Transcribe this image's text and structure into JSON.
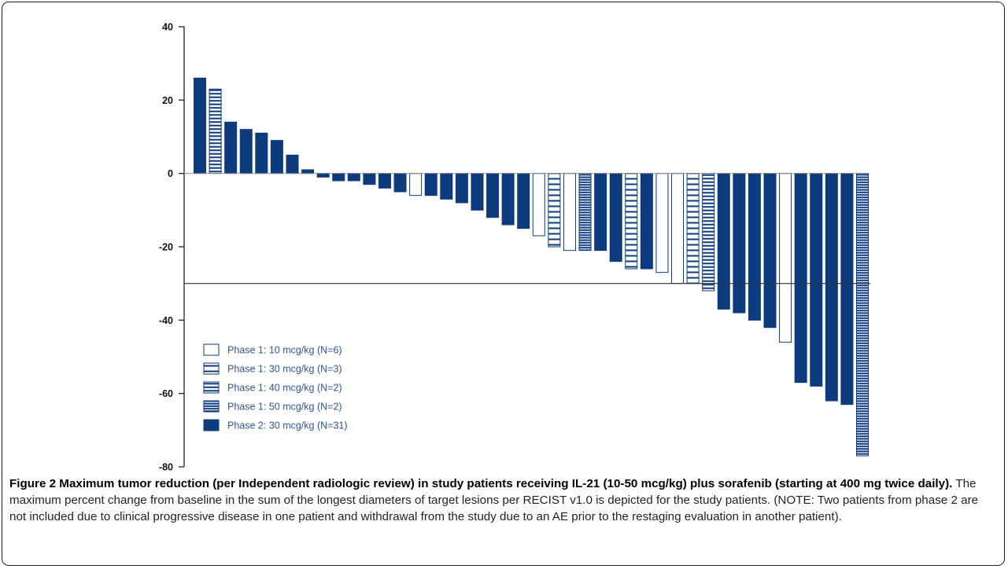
{
  "chart_data": {
    "type": "bar",
    "ylim": [
      -80,
      40
    ],
    "yticks": [
      40,
      20,
      0,
      -20,
      -40,
      -60,
      -80
    ],
    "reference_line": -30,
    "grid": false,
    "legend_position": "bottom-left",
    "legend": [
      {
        "key": "p1_10",
        "label": "Phase 1: 10 mcg/kg (N=6)"
      },
      {
        "key": "p1_30",
        "label": "Phase 1: 30 mcg/kg (N=3)"
      },
      {
        "key": "p1_40",
        "label": "Phase 1: 40 mcg/kg (N=2)"
      },
      {
        "key": "p1_50",
        "label": "Phase 1: 50 mcg/kg (N=2)"
      },
      {
        "key": "p2_30",
        "label": "Phase 2: 30 mcg/kg (N=31)"
      }
    ],
    "bars": [
      {
        "group": "p2_30",
        "value": 26
      },
      {
        "group": "p1_40",
        "value": 23
      },
      {
        "group": "p2_30",
        "value": 14
      },
      {
        "group": "p2_30",
        "value": 12
      },
      {
        "group": "p2_30",
        "value": 11
      },
      {
        "group": "p2_30",
        "value": 9
      },
      {
        "group": "p2_30",
        "value": 5
      },
      {
        "group": "p2_30",
        "value": 1
      },
      {
        "group": "p2_30",
        "value": -1
      },
      {
        "group": "p2_30",
        "value": -2
      },
      {
        "group": "p2_30",
        "value": -2
      },
      {
        "group": "p2_30",
        "value": -3
      },
      {
        "group": "p2_30",
        "value": -4
      },
      {
        "group": "p2_30",
        "value": -5
      },
      {
        "group": "p1_10",
        "value": -6
      },
      {
        "group": "p2_30",
        "value": -6
      },
      {
        "group": "p2_30",
        "value": -7
      },
      {
        "group": "p2_30",
        "value": -8
      },
      {
        "group": "p2_30",
        "value": -10
      },
      {
        "group": "p2_30",
        "value": -12
      },
      {
        "group": "p2_30",
        "value": -14
      },
      {
        "group": "p2_30",
        "value": -15
      },
      {
        "group": "p1_10",
        "value": -17
      },
      {
        "group": "p1_30",
        "value": -20
      },
      {
        "group": "p1_10",
        "value": -21
      },
      {
        "group": "p1_50",
        "value": -21
      },
      {
        "group": "p2_30",
        "value": -21
      },
      {
        "group": "p2_30",
        "value": -24
      },
      {
        "group": "p1_30",
        "value": -26
      },
      {
        "group": "p2_30",
        "value": -26
      },
      {
        "group": "p1_10",
        "value": -27
      },
      {
        "group": "p1_10",
        "value": -30
      },
      {
        "group": "p1_30",
        "value": -30
      },
      {
        "group": "p1_40",
        "value": -32
      },
      {
        "group": "p2_30",
        "value": -37
      },
      {
        "group": "p2_30",
        "value": -38
      },
      {
        "group": "p2_30",
        "value": -40
      },
      {
        "group": "p2_30",
        "value": -42
      },
      {
        "group": "p1_10",
        "value": -46
      },
      {
        "group": "p2_30",
        "value": -57
      },
      {
        "group": "p2_30",
        "value": -58
      },
      {
        "group": "p2_30",
        "value": -62
      },
      {
        "group": "p2_30",
        "value": -63
      },
      {
        "group": "p1_50",
        "value": -77
      }
    ],
    "colors": {
      "navy": "#0d3b7e",
      "outline": "#0d3b7e",
      "legend_text": "#2f5597"
    }
  },
  "caption": {
    "title": "Figure 2 Maximum tumor reduction (per Independent radiologic review) in study patients receiving IL-21 (10-50 mcg/kg) plus sorafenib (starting at 400 mg twice daily).",
    "body": " The maximum percent change from baseline in the sum of the longest diameters of target lesions per RECIST v1.0 is depicted for the study patients. (NOTE: Two patients from phase 2 are not included due to clinical progressive disease in one patient and withdrawal from the study due to an AE prior to the restaging evaluation in another patient)."
  }
}
